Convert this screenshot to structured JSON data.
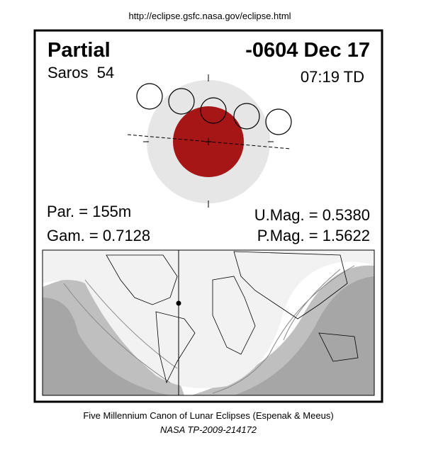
{
  "header": {
    "url": "http://eclipse.gsfc.nasa.gov/eclipse.html",
    "type": "Partial",
    "date": "-0604 Dec 17",
    "saros": "Saros  54",
    "time": "07:19 TD"
  },
  "parameters": {
    "duration": "Par. = 155m",
    "gamma": "Gam. = 0.7128",
    "umbral_magnitude": "U.Mag. = 0.5380",
    "penumbral_magnitude": "P.Mag. = 1.5622"
  },
  "footer": {
    "canon": "Five Millennium Canon of Lunar Eclipses (Espenak & Meeus)",
    "reference": "NASA TP-2009-214172"
  }
}
